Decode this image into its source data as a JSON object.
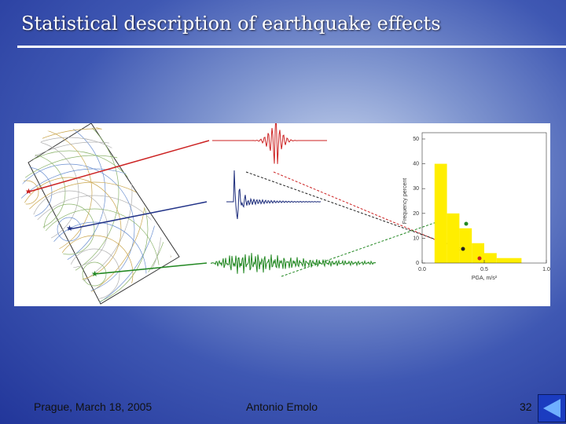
{
  "header": {
    "title": "Statistical description of earthquake effects"
  },
  "figure": {
    "histogram": {
      "type": "histogram",
      "x_label": "PGA, m/s²",
      "y_label": "Frequency percent",
      "bins": [
        0.1,
        0.2,
        0.3,
        0.4,
        0.5,
        0.6,
        0.8
      ],
      "counts": [
        40,
        20,
        14,
        8,
        4,
        2
      ],
      "color": "#ffee00",
      "xlim": [
        0,
        1
      ],
      "ylim": [
        0,
        50
      ],
      "xticks": [
        {
          "value": 0,
          "label": "0.0"
        },
        {
          "value": 0.5,
          "label": "0.5"
        },
        {
          "value": 1,
          "label": "1.0"
        }
      ],
      "yticks": [
        0,
        10,
        20,
        30,
        40,
        50
      ]
    }
  },
  "footer": {
    "left": "Prague, March 18, 2005",
    "center": "Antonio Emolo",
    "page": "32"
  }
}
